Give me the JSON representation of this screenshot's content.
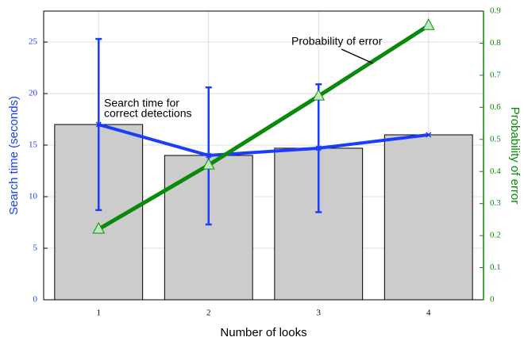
{
  "chart_data": {
    "type": "combo",
    "xlabel": "Number of looks",
    "ylabel": "Search time (seconds)",
    "y2label": "Probability of error",
    "categories": [
      "1",
      "2",
      "3",
      "4"
    ],
    "ylim": [
      0,
      28
    ],
    "yticks": [
      0,
      5,
      10,
      15,
      20,
      25
    ],
    "y2lim": [
      0,
      0.9
    ],
    "y2ticks": [
      0,
      0.1,
      0.2,
      0.3,
      0.4,
      0.5,
      0.6,
      0.7,
      0.8,
      0.9
    ],
    "grid": true,
    "ycolor": "#1a3cff",
    "y2color": "#0a8a0a",
    "series": [
      {
        "type": "bar",
        "color": "#cccccc",
        "values": [
          17,
          14,
          14.7,
          16
        ]
      },
      {
        "type": "line",
        "color": "#1a3cff",
        "values": [
          17,
          14,
          14.7,
          16
        ],
        "error_bars": [
          [
            8.7,
            25.3
          ],
          [
            7.3,
            20.6
          ],
          [
            8.5,
            20.9
          ],
          null
        ]
      },
      {
        "type": "line",
        "axis": "y2",
        "color": "#0a8a0a",
        "values": [
          0.22,
          0.42,
          0.635,
          0.855
        ]
      }
    ],
    "annotations": [
      {
        "lines": [
          "Search time for",
          "correct detections"
        ]
      },
      {
        "text": "Probability of error"
      }
    ]
  }
}
